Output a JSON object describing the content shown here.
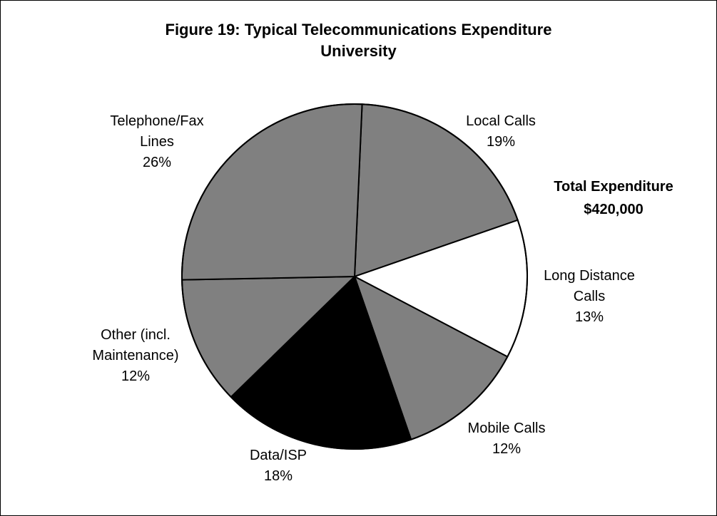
{
  "chart_data": {
    "type": "pie",
    "title_lines": [
      "Figure 19: Typical Telecommunications Expenditure",
      "University"
    ],
    "annotation": {
      "line1": "Total Expenditure",
      "line2": "$420,000"
    },
    "start_angle_deg": -87.5,
    "slices": [
      {
        "label_lines": [
          "Local Calls"
        ],
        "value": 19,
        "pct_label": "19%",
        "color": "#808080"
      },
      {
        "label_lines": [
          "Long Distance",
          "Calls"
        ],
        "value": 13,
        "pct_label": "13%",
        "color": "#ffffff"
      },
      {
        "label_lines": [
          "Mobile Calls"
        ],
        "value": 12,
        "pct_label": "12%",
        "color": "#808080"
      },
      {
        "label_lines": [
          "Data/ISP"
        ],
        "value": 18,
        "pct_label": "18%",
        "color": "#000000"
      },
      {
        "label_lines": [
          "Other (incl.",
          "Maintenance)"
        ],
        "value": 12,
        "pct_label": "12%",
        "color": "#808080"
      },
      {
        "label_lines": [
          "Telephone/Fax",
          "Lines"
        ],
        "value": 26,
        "pct_label": "26%",
        "color": "#808080"
      }
    ]
  }
}
